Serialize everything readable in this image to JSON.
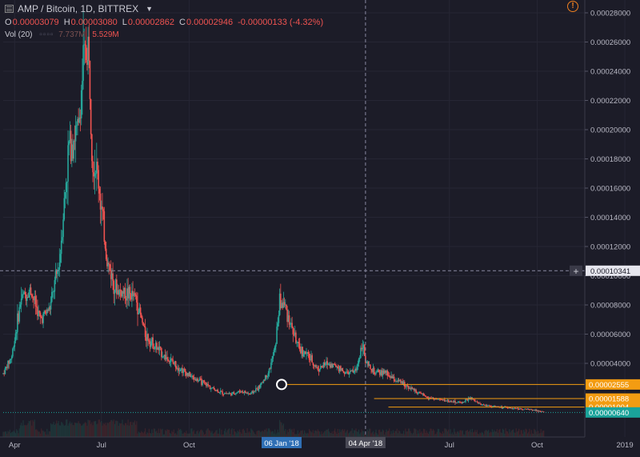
{
  "header": {
    "symbol": "AMP / Bitcoin, 1D, BITTREX",
    "open_label": "O",
    "open": "0.00003079",
    "high_label": "H",
    "high": "0.00003080",
    "low_label": "L",
    "low": "0.00002862",
    "close_label": "C",
    "close": "0.00002946",
    "change": "-0.00000133 (-4.32%)"
  },
  "volume": {
    "label": "Vol (20)",
    "value1": "7.737M",
    "value2": "5.529M"
  },
  "colors": {
    "up": "#26a69a",
    "down": "#ef5350",
    "background": "#1c1c28",
    "axis_text": "#b8b8c4",
    "level_line": "#f39c12",
    "price_tag_teal": "#1aa39a",
    "date_tag_blue": "#2f6fb5",
    "date_tag_gray": "#4a4a56"
  },
  "chart_data": {
    "type": "candlestick",
    "title": "AMP / Bitcoin, 1D, BITTREX",
    "y_axis": {
      "ticks": [
        "0.00028000",
        "0.00026000",
        "0.00024000",
        "0.00022000",
        "0.00020000",
        "0.00018000",
        "0.00016000",
        "0.00014000",
        "0.00012000",
        "0.00010000",
        "0.00008000",
        "0.00006000",
        "0.00004000"
      ],
      "range": [
        0,
        0.00028
      ],
      "position": "right"
    },
    "x_axis": {
      "ticks": [
        "Apr",
        "Jul",
        "Oct",
        "Jul",
        "Oct",
        "2019"
      ],
      "date_range": [
        "2017-03-20",
        "2018-11-20"
      ]
    },
    "crosshair": {
      "price": "0.00010341",
      "date_a": "06 Jan '18",
      "date_b": "04 Apr '18",
      "date_a_iso": "2018-01-06",
      "date_b_iso": "2018-04-04"
    },
    "levels": [
      {
        "label": "0.00002555",
        "value": 2.555e-05,
        "from_date": "2018-01-06"
      },
      {
        "label": "0.00001588",
        "value": 1.588e-05,
        "from_date": "2018-04-13"
      },
      {
        "label": "0.00001004",
        "value": 1.004e-05,
        "from_date": "2018-04-28"
      }
    ],
    "last_price": {
      "label": "0.00000640",
      "value": 6.4e-06
    },
    "marker": {
      "date": "2018-01-06",
      "value": 2.555e-05
    },
    "price_path": [
      [
        "2017-03-20",
        3.3e-05
      ],
      [
        "2017-03-29",
        4.5e-05
      ],
      [
        "2017-04-08",
        8.5e-05
      ],
      [
        "2017-04-18",
        9e-05
      ],
      [
        "2017-04-28",
        7e-05
      ],
      [
        "2017-05-08",
        7.8e-05
      ],
      [
        "2017-05-18",
        0.00011
      ],
      [
        "2017-05-28",
        0.00019
      ],
      [
        "2017-06-07",
        0.0002
      ],
      [
        "2017-06-12",
        0.000245
      ],
      [
        "2017-06-17",
        0.000258
      ],
      [
        "2017-06-22",
        0.00018
      ],
      [
        "2017-06-27",
        0.00017
      ],
      [
        "2017-07-07",
        0.00011
      ],
      [
        "2017-07-17",
        9e-05
      ],
      [
        "2017-07-27",
        8.8e-05
      ],
      [
        "2017-08-06",
        8.5e-05
      ],
      [
        "2017-08-16",
        6e-05
      ],
      [
        "2017-08-26",
        5.2e-05
      ],
      [
        "2017-09-05",
        4.5e-05
      ],
      [
        "2017-09-15",
        4e-05
      ],
      [
        "2017-09-25",
        3.5e-05
      ],
      [
        "2017-10-05",
        3e-05
      ],
      [
        "2017-10-15",
        2.7e-05
      ],
      [
        "2017-10-25",
        2.3e-05
      ],
      [
        "2017-11-04",
        2e-05
      ],
      [
        "2017-11-14",
        1.9e-05
      ],
      [
        "2017-11-24",
        2.1e-05
      ],
      [
        "2017-12-04",
        1.9e-05
      ],
      [
        "2017-12-14",
        2.4e-05
      ],
      [
        "2017-12-24",
        3.5e-05
      ],
      [
        "2017-12-30",
        5e-05
      ],
      [
        "2018-01-04",
        8.2e-05
      ],
      [
        "2018-01-09",
        8e-05
      ],
      [
        "2018-01-14",
        7e-05
      ],
      [
        "2018-01-24",
        5e-05
      ],
      [
        "2018-02-03",
        4.5e-05
      ],
      [
        "2018-02-13",
        3.6e-05
      ],
      [
        "2018-02-23",
        4e-05
      ],
      [
        "2018-03-05",
        3.8e-05
      ],
      [
        "2018-03-15",
        3.3e-05
      ],
      [
        "2018-03-25",
        3.5e-05
      ],
      [
        "2018-04-01",
        5.5e-05
      ],
      [
        "2018-04-04",
        4e-05
      ],
      [
        "2018-04-14",
        3.3e-05
      ],
      [
        "2018-04-24",
        3.4e-05
      ],
      [
        "2018-05-04",
        2.9e-05
      ],
      [
        "2018-05-14",
        2.6e-05
      ],
      [
        "2018-05-24",
        2.2e-05
      ],
      [
        "2018-06-03",
        1.8e-05
      ],
      [
        "2018-06-13",
        1.6e-05
      ],
      [
        "2018-06-23",
        1.5e-05
      ],
      [
        "2018-07-03",
        1.4e-05
      ],
      [
        "2018-07-13",
        1.3e-05
      ],
      [
        "2018-07-23",
        1.6e-05
      ],
      [
        "2018-08-02",
        1.2e-05
      ],
      [
        "2018-08-12",
        1.1e-05
      ],
      [
        "2018-08-22",
        1e-05
      ],
      [
        "2018-09-01",
        9.5e-06
      ],
      [
        "2018-09-11",
        9e-06
      ],
      [
        "2018-09-21",
        8.5e-06
      ],
      [
        "2018-10-01",
        8e-06
      ],
      [
        "2018-10-08",
        6.4e-06
      ]
    ]
  }
}
